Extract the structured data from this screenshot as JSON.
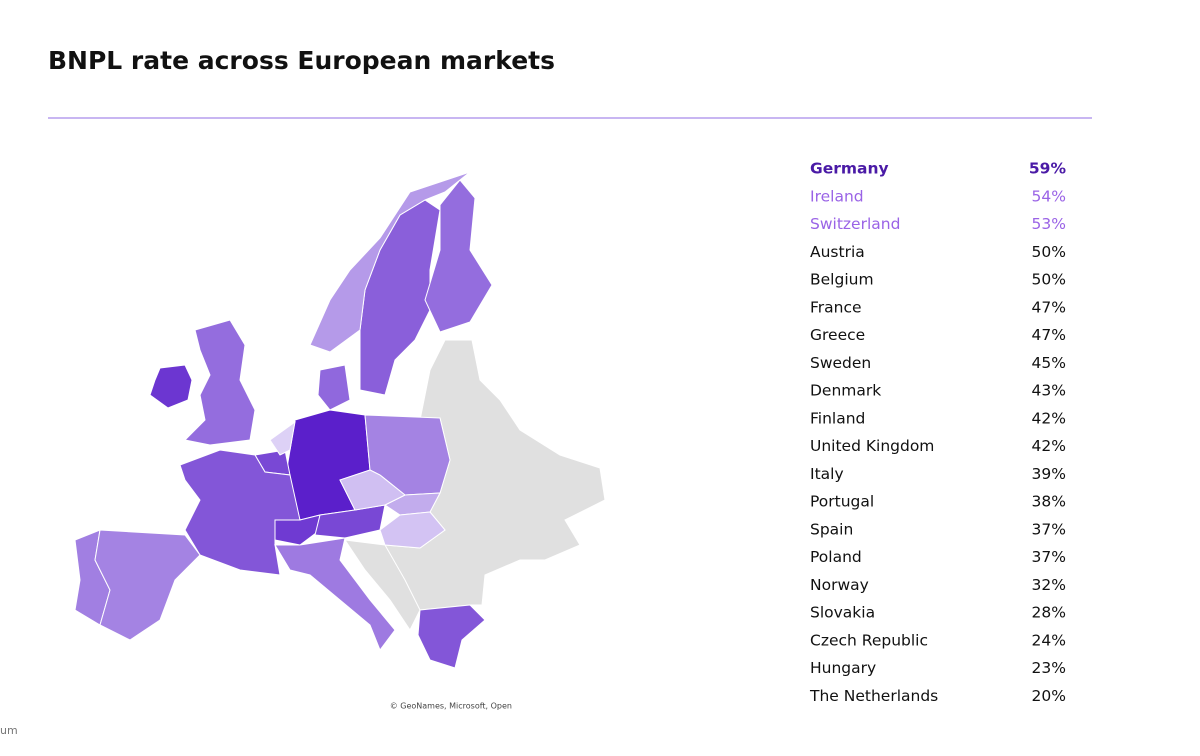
{
  "chart_data": {
    "type": "choropleth",
    "title": "BNPL rate across European markets",
    "categories": [
      "Germany",
      "Ireland",
      "Switzerland",
      "Austria",
      "Belgium",
      "France",
      "Greece",
      "Sweden",
      "Denmark",
      "Finland",
      "United Kingdom",
      "Italy",
      "Portugal",
      "Spain",
      "Poland",
      "Norway",
      "Slovakia",
      "Czech Republic",
      "Hungary",
      "The Netherlands"
    ],
    "values": [
      59,
      54,
      53,
      50,
      50,
      47,
      47,
      45,
      43,
      42,
      42,
      39,
      38,
      37,
      37,
      32,
      28,
      24,
      23,
      20
    ],
    "value_labels": [
      "59%",
      "54%",
      "53%",
      "50%",
      "50%",
      "47%",
      "47%",
      "45%",
      "43%",
      "42%",
      "42%",
      "39%",
      "38%",
      "37%",
      "37%",
      "32%",
      "28%",
      "24%",
      "23%",
      "20%"
    ],
    "colors": [
      "#ddd1f6",
      "#5b1fcb"
    ],
    "no_data_color": "#e0e0e0",
    "label_colors": [
      "#4a1aa6",
      "#9a63e6",
      "#9a63e6"
    ],
    "attribution": "© GeoNames, Microsoft, Open",
    "footnote": "um"
  }
}
